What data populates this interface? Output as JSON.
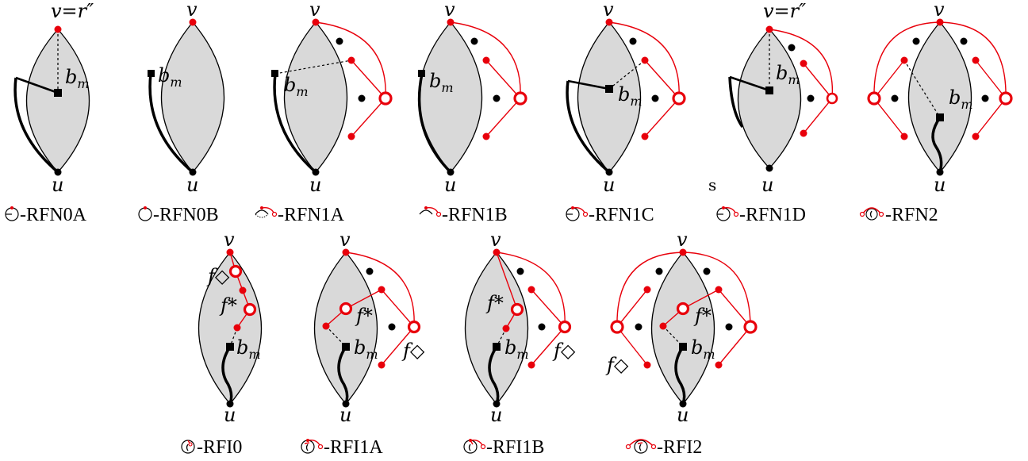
{
  "labels": {
    "v": "v",
    "u": "u",
    "v_root": "v=r″",
    "b": "b",
    "b_sub": "m",
    "f_star": "f*",
    "f_diamond": "f◇",
    "stray_s": "s"
  },
  "captions": {
    "RFN0A": "-RFN0A",
    "RFN0B": "-RFN0B",
    "RFN1A": "-RFN1A",
    "RFN1B": "-RFN1B",
    "RFN1C": "-RFN1C",
    "RFN1D": "-RFN1D",
    "RFN2": "-RFN2",
    "RFI0": "-RFI0",
    "RFI1A": "-RFI1A",
    "RFI1B": "-RFI1B",
    "RFI2": "-RFI2"
  },
  "colors": {
    "face": "#d9d9d9",
    "accent_red": "#e8000b",
    "ink": "#000000"
  }
}
